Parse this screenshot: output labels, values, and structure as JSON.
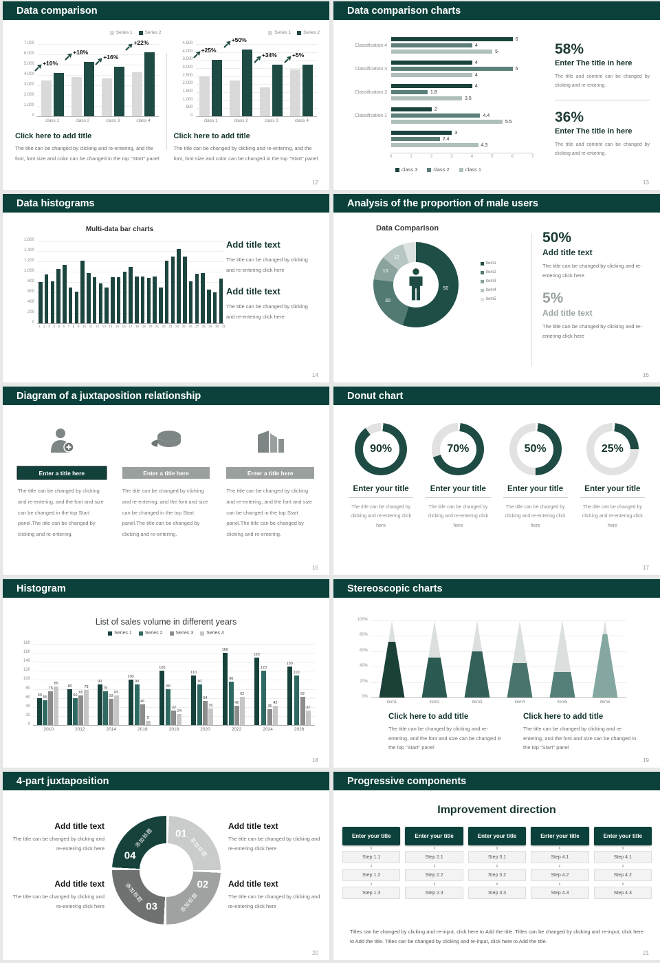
{
  "palette": {
    "teal": "#1e4b44",
    "header": "#0c413b",
    "light_bar": "#d9d9d9",
    "ring_gray": "#e2e2e2",
    "s13": [
      "#1b433d",
      "#5c7f7a",
      "#aebfbc"
    ],
    "s18": [
      "#17413b",
      "#2f6a62",
      "#8c8c8c",
      "#c6c6c6"
    ]
  },
  "s12": {
    "title": "Data comparison",
    "page": "12",
    "block_title": "Click here to add title",
    "blocks": [
      {
        "body": "The title can be changed by clicking and re-entering, and the font, font size and color can be changed in the top \"Start\" panel"
      },
      {
        "body": "The title can be changed by clicking and re-entering, and the font, font size and color can be changed in the top \"Start\" panel"
      }
    ],
    "chart_data": [
      {
        "type": "bar",
        "categories": [
          "class 1",
          "class 2",
          "class 3",
          "class 4"
        ],
        "series": [
          {
            "name": "Series 1",
            "values": [
              3500,
              3800,
              3700,
              4300
            ]
          },
          {
            "name": "Series 2",
            "values": [
              4200,
              5300,
              4800,
              6200
            ]
          }
        ],
        "growth_labels": [
          "+10%",
          "+18%",
          "+16%",
          "+22%"
        ],
        "ylim": [
          0,
          7000
        ],
        "ytick_step": 1000
      },
      {
        "type": "bar",
        "categories": [
          "class 1",
          "class 2",
          "class 3",
          "class 4"
        ],
        "series": [
          {
            "name": "Series 1",
            "values": [
              2500,
              2250,
              1800,
              2900
            ]
          },
          {
            "name": "Series 2",
            "values": [
              3500,
              4150,
              3200,
              3200
            ]
          }
        ],
        "growth_labels": [
          "+25%",
          "+50%",
          "+34%",
          "+5%"
        ],
        "ylim": [
          0,
          4500
        ],
        "ytick_step": 500
      }
    ]
  },
  "s13": {
    "title": "Data comparison charts",
    "page": "13",
    "chart_data": {
      "type": "bar",
      "orientation": "horizontal",
      "categories": [
        "Classification 4",
        "Classification 3",
        "Classification 2",
        "Classification 1",
        ""
      ],
      "series": [
        {
          "name": "class 3",
          "values": [
            6,
            4,
            4,
            2,
            3
          ]
        },
        {
          "name": "class 2",
          "values": [
            4,
            6,
            1.8,
            4.4,
            2.4
          ]
        },
        {
          "name": "class 1",
          "values": [
            5,
            4,
            3.5,
            5.5,
            4.3
          ]
        }
      ],
      "xlim": [
        0,
        7
      ],
      "xticks": [
        0,
        1,
        2,
        3,
        4,
        5,
        6,
        7
      ]
    },
    "stats": [
      {
        "pct": "58%",
        "title": "Enter The title in here",
        "body": "The title and content can be changed by clicking and re-entering."
      },
      {
        "pct": "36%",
        "title": "Enter The title in here",
        "body": "The title and content can be changed by clicking and re-entering."
      }
    ]
  },
  "s14": {
    "title": "Data histograms",
    "page": "14",
    "chart_data": {
      "type": "bar",
      "title": "Multi-data bar charts",
      "x": [
        1,
        2,
        3,
        4,
        5,
        6,
        7,
        8,
        9,
        10,
        11,
        12,
        13,
        14,
        15,
        16,
        17,
        18,
        19,
        20,
        21,
        22,
        23,
        24,
        25,
        26,
        27,
        28,
        29,
        30,
        31
      ],
      "values": [
        800,
        950,
        810,
        1060,
        1130,
        700,
        610,
        1210,
        980,
        900,
        780,
        700,
        900,
        900,
        1000,
        1100,
        910,
        905,
        880,
        905,
        700,
        1210,
        1300,
        1445,
        1300,
        810,
        960,
        975,
        660,
        595,
        870
      ],
      "ylim": [
        0,
        1600
      ],
      "ytick_step": 200
    },
    "sections": [
      {
        "title": "Add title text",
        "body": "The title can be changed by clicking and re-entering click here"
      },
      {
        "title": "Add title text",
        "body": "The title can be changed by clicking and re-entering click here"
      }
    ]
  },
  "s15": {
    "title": "Analysis of the proportion of male users",
    "page": "15",
    "chart_data": {
      "type": "pie",
      "title": "Data Comparison",
      "legend": [
        "item1",
        "item2",
        "item3",
        "item4",
        "item5"
      ],
      "slices": [
        {
          "label": "50",
          "value": 50,
          "sweep": 55,
          "color": "#1f4e47"
        },
        {
          "label": "30",
          "value": 30,
          "sweep": 22,
          "color": "#527a73"
        },
        {
          "label": "10",
          "value": 10,
          "sweep": 9,
          "color": "#8aa39f"
        },
        {
          "label": "12",
          "value": 12,
          "sweep": 9,
          "color": "#b7c6c3"
        },
        {
          "label": "",
          "value": 5,
          "sweep": 5,
          "color": "#dce2e1"
        }
      ]
    },
    "stats": [
      {
        "pct": "50%",
        "title": "Add title text",
        "body": "The title can be changed by clicking and re-entering click here"
      },
      {
        "pct": "5%",
        "title": "Add title text",
        "body": "The title can be changed by clicking and re-entering click here"
      }
    ]
  },
  "s16": {
    "title": "Diagram of a juxtaposition relationship",
    "page": "16",
    "columns": [
      {
        "icon": "person-add-icon",
        "bar_label": "Enter a title here",
        "body": "The title can be changed by clicking and re-entering, and the font and size can be changed in the top Start panel.The title can be changed by clicking and re-entering."
      },
      {
        "icon": "pie-3d-icon",
        "bar_label": "Enter a title here",
        "body": "The title can be changed by clicking and re-entering, and the font and size can be changed in the top Start panel.The title can be changed by clicking and re-entering."
      },
      {
        "icon": "building-icon",
        "bar_label": "Enter a title here",
        "body": "The title can be changed by clicking and re-entering, and the font and size can be changed in the top Start panel.The title can be changed by clicking and re-entering."
      }
    ]
  },
  "s17": {
    "title": "Donut chart",
    "page": "17",
    "donuts": [
      {
        "pct": 90,
        "label": "90%",
        "title": "Enter your title",
        "body": "The title can be changed by clicking and re-entering click here"
      },
      {
        "pct": 70,
        "label": "70%",
        "title": "Enter your title",
        "body": "The title can be changed by clicking and re-entering click here"
      },
      {
        "pct": 50,
        "label": "50%",
        "title": "Enter your title",
        "body": "The title can be changed by clicking and re-entering click here"
      },
      {
        "pct": 25,
        "label": "25%",
        "title": "Enter your title",
        "body": "The title can be changed by clicking and re-entering click here"
      }
    ]
  },
  "s18": {
    "title": "Histogram",
    "page": "18",
    "chart_data": {
      "type": "bar",
      "title": "List of sales volume in different years",
      "categories": [
        "2010",
        "2012",
        "2014",
        "2016",
        "2018",
        "2020",
        "2022",
        "2024",
        "2026"
      ],
      "series": [
        {
          "name": "Series 1",
          "values": [
            60,
            80,
            90,
            100,
            120,
            110,
            160,
            150,
            130
          ]
        },
        {
          "name": "Series 2",
          "values": [
            55,
            60,
            75,
            90,
            80,
            90,
            96,
            120,
            110
          ]
        },
        {
          "name": "Series 3",
          "values": [
            75,
            65,
            58,
            46,
            32,
            54,
            42,
            35,
            62
          ]
        },
        {
          "name": "Series 4",
          "values": [
            85,
            78,
            65,
            9,
            24,
            36,
            62,
            42,
            32
          ]
        }
      ],
      "ylim": [
        0,
        180
      ],
      "ytick_step": 20
    }
  },
  "s19": {
    "title": "Stereoscopic charts",
    "page": "19",
    "chart_data": {
      "type": "cone",
      "categories": [
        "item1",
        "item2",
        "item3",
        "item4",
        "item5",
        "item6"
      ],
      "values_pct": [
        72,
        52,
        60,
        45,
        33,
        82
      ],
      "colors": [
        "#1a4038",
        "#2b5a52",
        "#336159",
        "#48746d",
        "#55807a",
        "#84a8a1"
      ],
      "yticks": [
        "0%",
        "20%",
        "40%",
        "60%",
        "80%",
        "100%"
      ]
    },
    "blocks": [
      {
        "title": "Click here to add title",
        "body": "The title can be changed by clicking and re-entering, and the font and size can be changed in the top \"Start\" panel"
      },
      {
        "title": "Click here to add title",
        "body": "The title can be changed by clicking and re-entering, and the font and size can be changed in the top \"Start\" panel"
      }
    ]
  },
  "s20": {
    "title": "4-part juxtaposition",
    "page": "20",
    "segments": [
      {
        "num": "01",
        "label": "添加标题",
        "color": "#c9cccb"
      },
      {
        "num": "02",
        "label": "添加标题",
        "color": "#9fa2a1"
      },
      {
        "num": "03",
        "label": "添加标题",
        "color": "#6e7170"
      },
      {
        "num": "04",
        "label": "添加标题",
        "color": "#17423c"
      }
    ],
    "blocks": [
      {
        "title": "Add title text",
        "body": "The title can be changed by clicking and re-entering click here"
      },
      {
        "title": "Add title text",
        "body": "The title can be changed by clicking and re-entering click here"
      },
      {
        "title": "Add title text",
        "body": "The title can be changed by clicking and re-entering click here"
      },
      {
        "title": "Add title text",
        "body": "The title can be changed by clicking and re-entering click here"
      }
    ]
  },
  "s21": {
    "title": "Progressive components",
    "page": "21",
    "heading": "Improvement direction",
    "columns": [
      {
        "header": "Enter your title",
        "steps": [
          "Step 1.1",
          "Step 1.2",
          "Step 1.3"
        ]
      },
      {
        "header": "Enter your title",
        "steps": [
          "Step 2.1",
          "Step 2.2",
          "Step 2.3"
        ]
      },
      {
        "header": "Enter your title",
        "steps": [
          "Step 3.1",
          "Step 3.2",
          "Step 3.3"
        ]
      },
      {
        "header": "Enter your title",
        "steps": [
          "Step 4.1",
          "Step 4.2",
          "Step 4.3"
        ]
      },
      {
        "header": "Enter your title",
        "steps": [
          "Step 4.1",
          "Step 4.2",
          "Step 4.3"
        ]
      }
    ],
    "footer": "Titles can be changed by clicking and re-input, click here to Add the title. Titles can be changed by clicking and re-input, click here to Add the title. Titles can be changed by clicking and re-input, click here to Add the title."
  }
}
